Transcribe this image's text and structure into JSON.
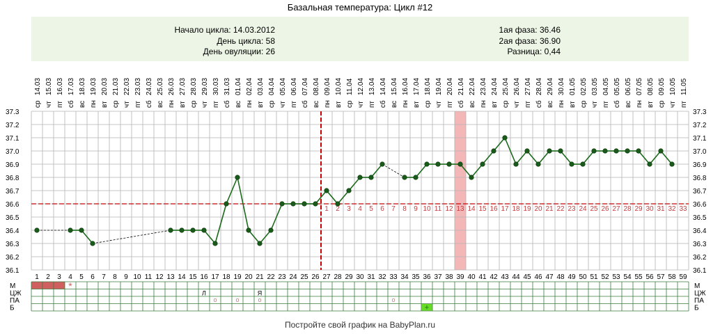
{
  "title": "Базальная температура: Цикл #12",
  "info": {
    "cycle_start": "Начало цикла: 14.03.2012",
    "cycle_day": "День цикла: 58",
    "ovulation_day": "День овуляции: 26",
    "phase1": "1ая фаза: 36.46",
    "phase2": "2ая фаза: 36.90",
    "difference": "Разница: 0,44"
  },
  "footer": "Постройте свой график на BabyPlan.ru",
  "colors": {
    "grid": "#b3b3b3",
    "line": "#1a6a1a",
    "point": "#1a5a1a",
    "coverline": "#cc0000",
    "phase2_numbers": "#c04040",
    "ovulation_band": "#f4b7b7",
    "menses": "#d06060",
    "marker_star": "#d06060",
    "marker_circle": "#c08080",
    "sex_cell": "#66dd22",
    "info_bg": "#edf6e6"
  },
  "chart_data": {
    "type": "line",
    "x_days": [
      1,
      2,
      3,
      4,
      5,
      6,
      7,
      8,
      9,
      10,
      11,
      12,
      13,
      14,
      15,
      16,
      17,
      18,
      19,
      20,
      21,
      22,
      23,
      24,
      25,
      26,
      27,
      28,
      29,
      30,
      31,
      32,
      33,
      34,
      35,
      36,
      37,
      38,
      39,
      40,
      41,
      42,
      43,
      44,
      45,
      46,
      47,
      48,
      49,
      50,
      51,
      52,
      53,
      54,
      55,
      56,
      57,
      58,
      59
    ],
    "dates": [
      "14.03",
      "15.03",
      "16.03",
      "17.03",
      "18.03",
      "19.03",
      "20.03",
      "21.03",
      "22.03",
      "23.03",
      "24.03",
      "25.03",
      "26.03",
      "27.03",
      "28.03",
      "29.03",
      "30.03",
      "31.03",
      "01.04",
      "02.04",
      "03.04",
      "04.04",
      "05.04",
      "06.04",
      "07.04",
      "08.04",
      "09.04",
      "10.04",
      "11.04",
      "12.04",
      "13.04",
      "14.04",
      "15.04",
      "16.04",
      "17.04",
      "18.04",
      "19.04",
      "20.04",
      "21.04",
      "22.04",
      "23.04",
      "24.04",
      "25.04",
      "26.04",
      "27.04",
      "28.04",
      "29.04",
      "30.04",
      "01.05",
      "02.05",
      "03.05",
      "04.05",
      "05.05",
      "06.05",
      "07.05",
      "08.05",
      "09.05",
      "10.05",
      "11.05"
    ],
    "weekdays": [
      "ср",
      "чт",
      "пт",
      "сб",
      "вс",
      "пн",
      "вт",
      "ср",
      "чт",
      "пт",
      "сб",
      "вс",
      "пн",
      "вт",
      "ср",
      "чт",
      "пт",
      "сб",
      "вс",
      "пн",
      "вт",
      "ср",
      "чт",
      "пт",
      "сб",
      "вс",
      "пн",
      "вт",
      "ср",
      "чт",
      "пт",
      "сб",
      "вс",
      "пн",
      "вт",
      "ср",
      "чт",
      "пт",
      "сб",
      "вс",
      "пн",
      "вт",
      "ср",
      "чт",
      "пт",
      "сб",
      "вс",
      "пн",
      "вт",
      "ср",
      "чт",
      "пт",
      "сб",
      "вс",
      "пн",
      "вт",
      "ср",
      "чт",
      "пт"
    ],
    "temperatures": [
      36.4,
      null,
      null,
      36.4,
      36.4,
      36.3,
      null,
      null,
      null,
      null,
      null,
      null,
      36.4,
      36.4,
      36.4,
      36.4,
      36.3,
      36.6,
      36.8,
      36.4,
      36.3,
      36.4,
      36.6,
      36.6,
      36.6,
      36.6,
      36.7,
      36.6,
      36.7,
      36.8,
      36.8,
      36.9,
      null,
      36.8,
      36.8,
      36.9,
      36.9,
      36.9,
      36.9,
      36.8,
      36.9,
      37.0,
      37.1,
      36.9,
      37.0,
      36.9,
      37.0,
      37.0,
      36.9,
      36.9,
      37.0,
      37.0,
      37.0,
      37.0,
      37.0,
      36.9,
      37.0,
      36.9,
      null
    ],
    "y_range": [
      36.1,
      37.3
    ],
    "y_ticks": [
      "36.1",
      "36.2",
      "36.3",
      "36.4",
      "36.5",
      "36.6",
      "36.7",
      "36.8",
      "36.9",
      "37.0",
      "37.1",
      "37.2",
      "37.3"
    ],
    "coverline": 36.6,
    "ovulation_day": 26,
    "ovulation_band_day": 39,
    "phase2_start_day": 27,
    "phase2_count": 33,
    "grid": true
  },
  "bottom_rows": {
    "labels": [
      "М",
      "ЦЖ",
      "ПА",
      "Б"
    ],
    "menses_days": [
      1,
      2,
      3
    ],
    "star_days": [
      4
    ],
    "star_glyph": "*",
    "cm_marks": [
      {
        "day": 16,
        "text": "Л"
      },
      {
        "day": 21,
        "text": "Я"
      }
    ],
    "pa_days": [
      17,
      19,
      21,
      33
    ],
    "pa_glyph": "o",
    "b_days": [
      36
    ],
    "b_glyph": "+"
  }
}
